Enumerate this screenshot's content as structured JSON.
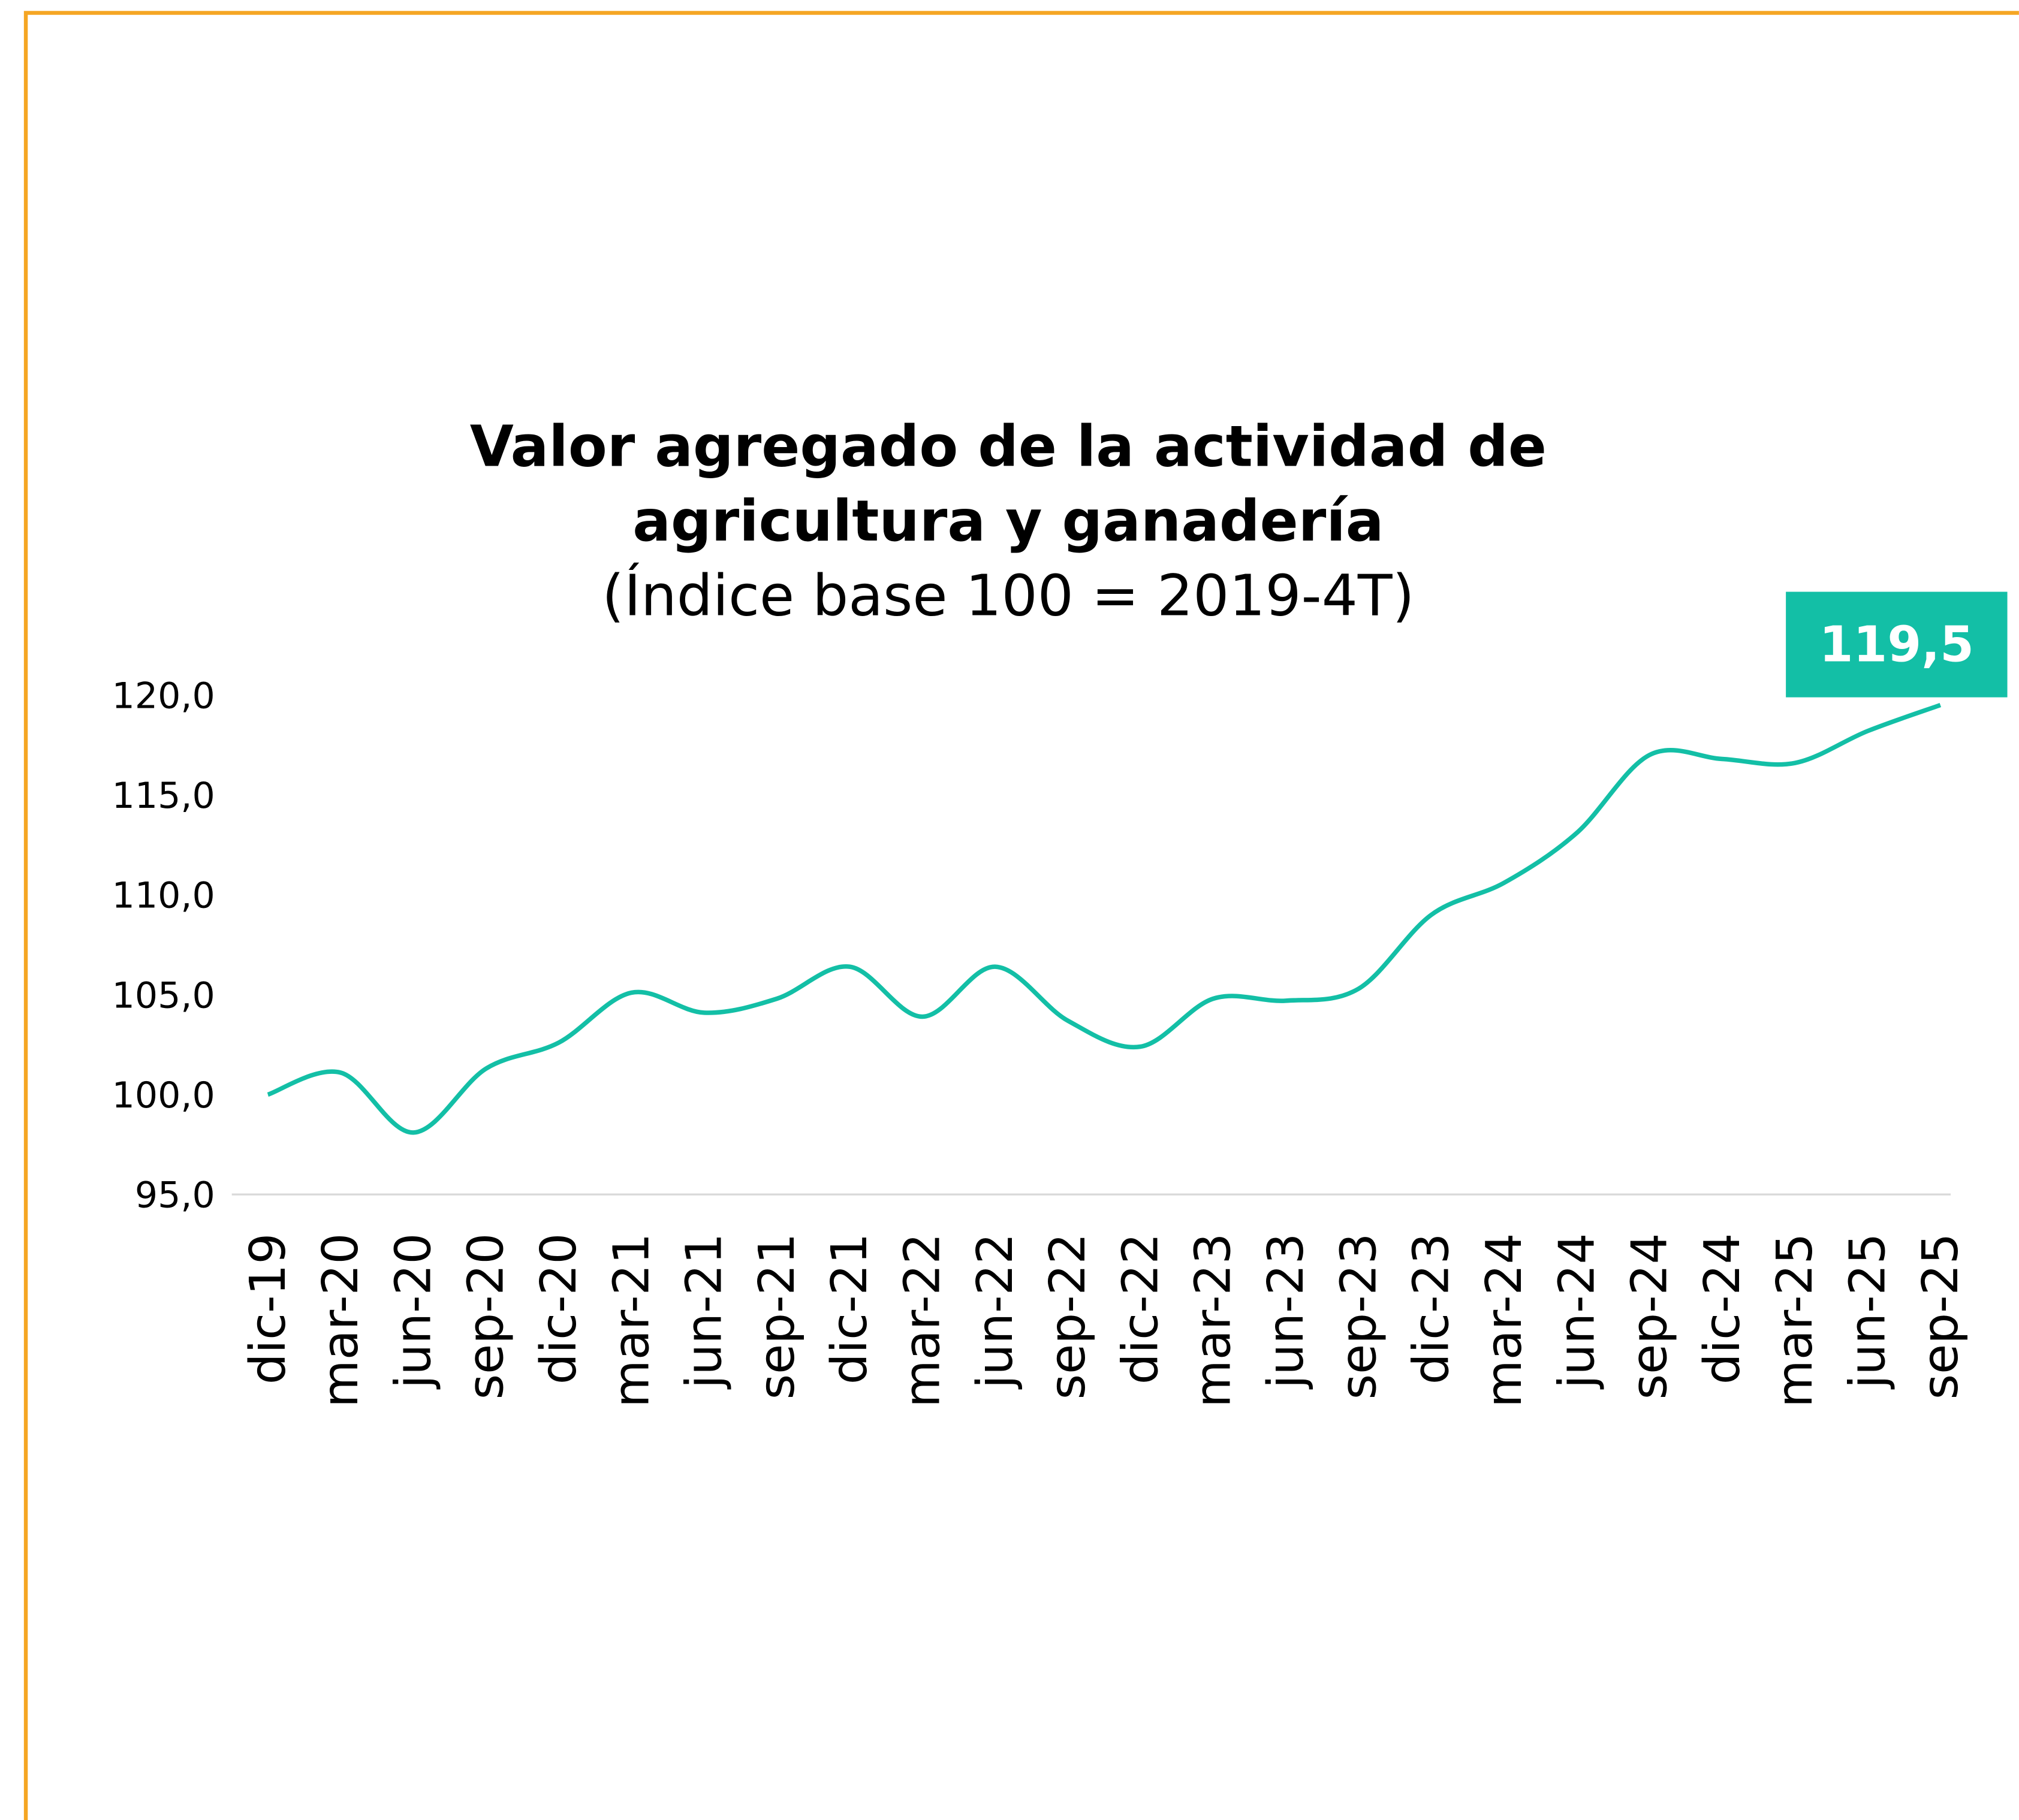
{
  "chart_data": {
    "type": "line",
    "title": [
      "Valor agregado de la actividad de",
      "agricultura y ganadería"
    ],
    "subtitle": "(Índice base 100 = 2019-4T)",
    "categories": [
      "dic-19",
      "mar-20",
      "jun-20",
      "sep-20",
      "dic-20",
      "mar-21",
      "jun-21",
      "sep-21",
      "dic-21",
      "mar-22",
      "jun-22",
      "sep-22",
      "dic-22",
      "mar-23",
      "jun-23",
      "sep-23",
      "dic-23",
      "mar-24",
      "jun-24",
      "sep-24",
      "dic-24",
      "mar-25",
      "jun-25",
      "sep-25"
    ],
    "series": [
      {
        "color": "#13bfa6",
        "values": [
          100.0,
          101.1,
          98.1,
          101.3,
          102.6,
          105.1,
          104.1,
          104.8,
          106.4,
          103.9,
          106.4,
          103.7,
          102.4,
          104.8,
          104.7,
          105.3,
          109.0,
          110.6,
          113.1,
          117.0,
          116.8,
          116.6,
          118.2,
          119.5
        ],
        "value_labels": [
          null,
          null,
          null,
          null,
          null,
          null,
          null,
          null,
          null,
          null,
          null,
          null,
          null,
          null,
          null,
          null,
          null,
          null,
          null,
          null,
          null,
          null,
          null,
          "119,5"
        ]
      }
    ],
    "ylim": [
      95,
      120
    ],
    "yticks": [
      {
        "value": 95,
        "label": "95,0"
      },
      {
        "value": 100,
        "label": "100,0"
      },
      {
        "value": 105,
        "label": "105,0"
      },
      {
        "value": 110,
        "label": "110,0"
      },
      {
        "value": 115,
        "label": "115,0"
      },
      {
        "value": 120,
        "label": "120,0"
      }
    ],
    "grid": false
  }
}
